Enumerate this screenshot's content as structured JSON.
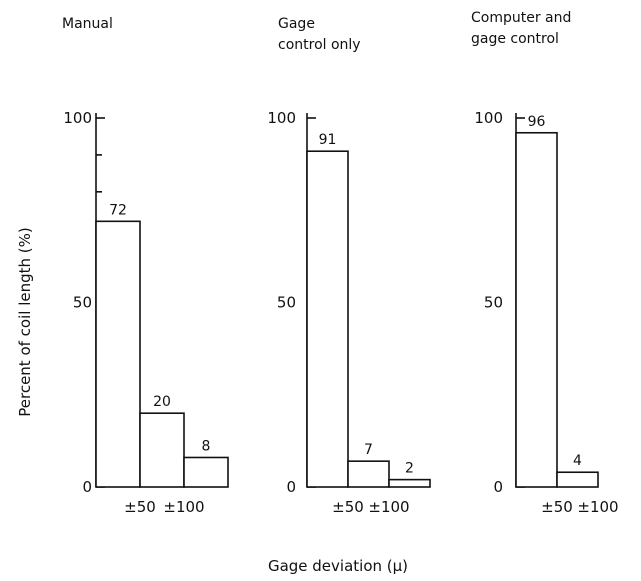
{
  "figure": {
    "ylabel": "Percent of coil length  (%)",
    "xlabel": "Gage deviation  (μ)"
  },
  "chart_data": [
    {
      "type": "bar",
      "title_lines": [
        "Manual"
      ],
      "categories": [
        "±50",
        "±100",
        ""
      ],
      "values": [
        72,
        20,
        8
      ],
      "value_labels": [
        "72",
        "20",
        "8"
      ],
      "yticks": [
        0,
        50,
        100
      ],
      "ylim": [
        0,
        100
      ]
    },
    {
      "type": "bar",
      "title_lines": [
        "Gage",
        "control only"
      ],
      "categories": [
        "±50",
        "±100",
        ""
      ],
      "values": [
        91,
        7,
        2
      ],
      "value_labels": [
        "91",
        "7",
        "2"
      ],
      "yticks": [
        0,
        50,
        100
      ],
      "ylim": [
        0,
        100
      ]
    },
    {
      "type": "bar",
      "title_lines": [
        "Computer and",
        "gage control"
      ],
      "categories": [
        "±50",
        "±100",
        ""
      ],
      "values": [
        96,
        4,
        0
      ],
      "value_labels": [
        "96",
        "4",
        ""
      ],
      "yticks": [
        0,
        50,
        100
      ],
      "ylim": [
        0,
        100
      ]
    }
  ]
}
